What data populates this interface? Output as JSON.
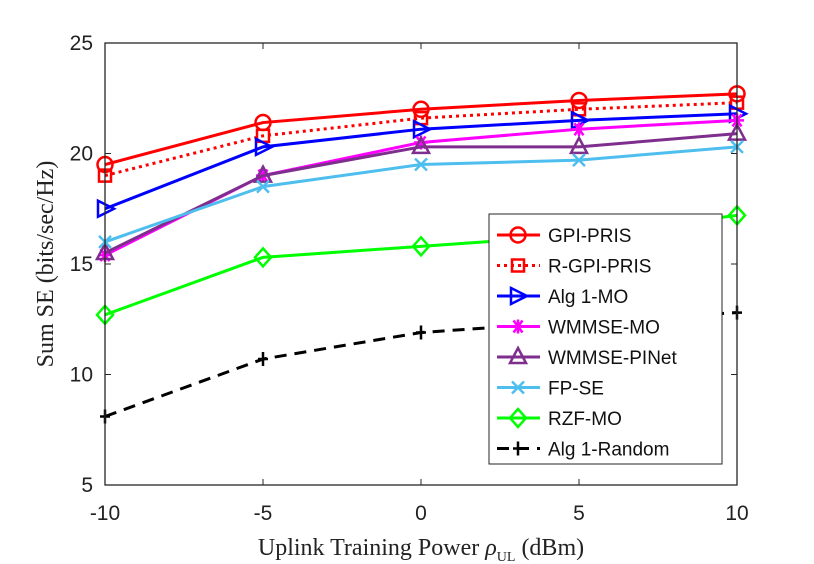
{
  "chart_data": {
    "type": "line",
    "title": "",
    "xlabel": "Uplink Training Power ρ_UL (dBm)",
    "xlabel_main": "Uplink Training Power ",
    "xlabel_symbol": "ρ",
    "xlabel_sub": "UL",
    "xlabel_unit": " (dBm)",
    "ylabel": "Sum SE (bits/sec/Hz)",
    "xlim": [
      -10,
      10
    ],
    "ylim": [
      5,
      25
    ],
    "xticks": [
      -10,
      -5,
      0,
      5,
      10
    ],
    "yticks": [
      5,
      10,
      15,
      20,
      25
    ],
    "grid": false,
    "legend_position": "lower-right",
    "x": [
      -10,
      -5,
      0,
      5,
      10
    ],
    "series": [
      {
        "name": "GPI-PRIS",
        "values": [
          19.5,
          21.4,
          22.0,
          22.4,
          22.7
        ],
        "color": "#ff0000",
        "dash": "solid",
        "marker": "circle"
      },
      {
        "name": "R-GPI-PRIS",
        "values": [
          19.0,
          20.8,
          21.6,
          22.0,
          22.3
        ],
        "color": "#ff0000",
        "dash": "dotted",
        "marker": "square"
      },
      {
        "name": "Alg 1-MO",
        "values": [
          17.5,
          20.3,
          21.1,
          21.5,
          21.8
        ],
        "color": "#0000ff",
        "dash": "solid",
        "marker": "triangle-right"
      },
      {
        "name": "WMMSE-MO",
        "values": [
          15.4,
          19.0,
          20.5,
          21.1,
          21.5
        ],
        "color": "#ff00ff",
        "dash": "solid",
        "marker": "asterisk"
      },
      {
        "name": "WMMSE-PINet",
        "values": [
          15.5,
          19.0,
          20.3,
          20.3,
          20.9
        ],
        "color": "#7e2f8e",
        "dash": "solid",
        "marker": "triangle-up"
      },
      {
        "name": "FP-SE",
        "values": [
          16.0,
          18.5,
          19.5,
          19.7,
          20.3
        ],
        "color": "#4dbeee",
        "dash": "solid",
        "marker": "x"
      },
      {
        "name": "RZF-MO",
        "values": [
          12.7,
          15.3,
          15.8,
          16.3,
          17.2
        ],
        "color": "#00ff00",
        "dash": "solid",
        "marker": "diamond"
      },
      {
        "name": "Alg 1-Random",
        "values": [
          8.1,
          10.7,
          11.9,
          12.4,
          12.8
        ],
        "color": "#000000",
        "dash": "dashed",
        "marker": "plus"
      }
    ]
  }
}
